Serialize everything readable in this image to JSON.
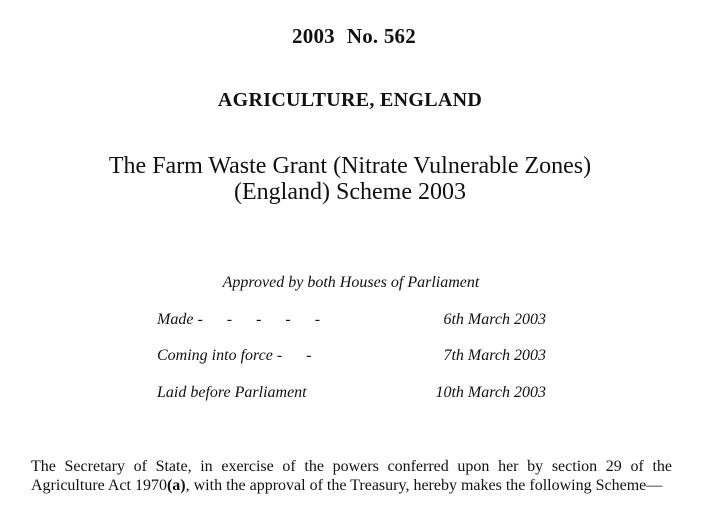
{
  "header": {
    "year": "2003",
    "number": "No. 562",
    "subject": "AGRICULTURE, ENGLAND",
    "title_line1": "The Farm Waste Grant (Nitrate Vulnerable Zones)",
    "title_line2": "(England) Scheme 2003"
  },
  "approval": "Approved by both Houses of Parliament",
  "dates": [
    {
      "label": "Made",
      "dashes": "-      -      -      -      -",
      "date": "6th March 2003"
    },
    {
      "label": "Coming into force",
      "dashes": "-      -",
      "date": "7th March 2003"
    },
    {
      "label": "Laid before Parliament",
      "dashes": "",
      "date": "10th March 2003"
    }
  ],
  "preamble": {
    "part1": "The Secretary of State, in exercise of the powers conferred upon her by section 29 of the Agriculture Act 1970",
    "footnote_ref": "(a)",
    "part2": ", with the approval of the Treasury, hereby makes the following Scheme—"
  }
}
